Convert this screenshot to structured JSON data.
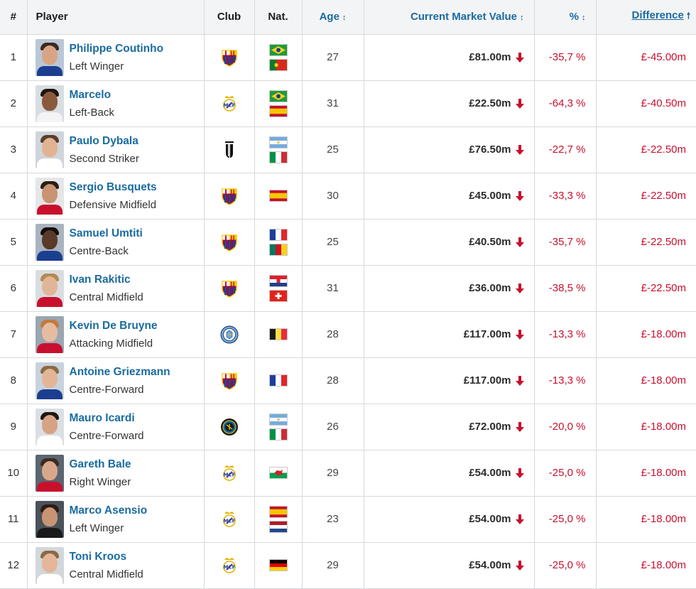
{
  "table": {
    "headers": {
      "num": "#",
      "player": "Player",
      "club": "Club",
      "nat": "Nat.",
      "age": "Age",
      "market_value": "Current Market Value",
      "pct": "%",
      "difference": "Difference"
    },
    "sort": {
      "column": "difference",
      "direction": "ascending"
    },
    "rows": [
      {
        "rank": "1",
        "name": "Philippe Coutinho",
        "position": "Left Winger",
        "club": "fcb-crest",
        "nat": [
          "brazil",
          "portugal"
        ],
        "age": "27",
        "value": "£81.00m",
        "pct": "-35,7 %",
        "diff": "£-45.00m",
        "avatar": {
          "skin": "#d7a584",
          "hair": "#3b2a1f",
          "shirt": "#1b3f8f",
          "bg": "#b9c7d6"
        }
      },
      {
        "rank": "2",
        "name": "Marcelo",
        "position": "Left-Back",
        "club": "real-madrid-crest",
        "nat": [
          "brazil",
          "spain"
        ],
        "age": "31",
        "value": "£22.50m",
        "pct": "-64,3 %",
        "diff": "£-40.50m",
        "avatar": {
          "skin": "#8a5a3c",
          "hair": "#1d1410",
          "shirt": "#f4f4f4",
          "bg": "#d8dde2"
        }
      },
      {
        "rank": "3",
        "name": "Paulo Dybala",
        "position": "Second Striker",
        "club": "juventus-crest",
        "nat": [
          "argentina",
          "italy"
        ],
        "age": "25",
        "value": "£76.50m",
        "pct": "-22,7 %",
        "diff": "£-22.50m",
        "avatar": {
          "skin": "#e0b393",
          "hair": "#5a3d2a",
          "shirt": "#ffffff",
          "bg": "#cfd5da"
        }
      },
      {
        "rank": "4",
        "name": "Sergio Busquets",
        "position": "Defensive Midfield",
        "club": "fcb-crest",
        "nat": [
          "spain"
        ],
        "age": "30",
        "value": "£45.00m",
        "pct": "-33,3 %",
        "diff": "£-22.50m",
        "avatar": {
          "skin": "#c99473",
          "hair": "#2a1d16",
          "shirt": "#c8102e",
          "bg": "#e4e6e8"
        }
      },
      {
        "rank": "5",
        "name": "Samuel Umtiti",
        "position": "Centre-Back",
        "club": "fcb-crest",
        "nat": [
          "france",
          "cameroon"
        ],
        "age": "25",
        "value": "£40.50m",
        "pct": "-35,7 %",
        "diff": "£-22.50m",
        "avatar": {
          "skin": "#5a3a28",
          "hair": "#130d0a",
          "shirt": "#1b3f8f",
          "bg": "#a9b4c0"
        }
      },
      {
        "rank": "6",
        "name": "Ivan Rakitic",
        "position": "Central Midfield",
        "club": "fcb-crest",
        "nat": [
          "croatia",
          "switzerland"
        ],
        "age": "31",
        "value": "£36.00m",
        "pct": "-38,5 %",
        "diff": "£-22.50m",
        "avatar": {
          "skin": "#e1b698",
          "hair": "#b38b52",
          "shirt": "#c8102e",
          "bg": "#d9dde0"
        }
      },
      {
        "rank": "7",
        "name": "Kevin De Bruyne",
        "position": "Attacking Midfield",
        "club": "man-city-crest",
        "nat": [
          "belgium"
        ],
        "age": "28",
        "value": "£117.00m",
        "pct": "-13,3 %",
        "diff": "£-18.00m",
        "avatar": {
          "skin": "#e6bca0",
          "hair": "#c27a3c",
          "shirt": "#c8102e",
          "bg": "#9aa6b0"
        }
      },
      {
        "rank": "8",
        "name": "Antoine Griezmann",
        "position": "Centre-Forward",
        "club": "fcb-crest",
        "nat": [
          "france"
        ],
        "age": "28",
        "value": "£117.00m",
        "pct": "-13,3 %",
        "diff": "£-18.00m",
        "avatar": {
          "skin": "#e2b597",
          "hair": "#8a6a44",
          "shirt": "#1b3f8f",
          "bg": "#c7d2dc"
        }
      },
      {
        "rank": "9",
        "name": "Mauro Icardi",
        "position": "Centre-Forward",
        "club": "inter-crest",
        "nat": [
          "argentina",
          "italy"
        ],
        "age": "26",
        "value": "£72.00m",
        "pct": "-20,0 %",
        "diff": "£-18.00m",
        "avatar": {
          "skin": "#d6a484",
          "hair": "#1e1612",
          "shirt": "#ffffff",
          "bg": "#dadfe3"
        }
      },
      {
        "rank": "10",
        "name": "Gareth Bale",
        "position": "Right Winger",
        "club": "real-madrid-crest",
        "nat": [
          "wales"
        ],
        "age": "29",
        "value": "£54.00m",
        "pct": "-25,0 %",
        "diff": "£-18.00m",
        "avatar": {
          "skin": "#d9a88a",
          "hair": "#3b2a1f",
          "shirt": "#c8102e",
          "bg": "#5b6670"
        }
      },
      {
        "rank": "11",
        "name": "Marco Asensio",
        "position": "Left Winger",
        "club": "real-madrid-crest",
        "nat": [
          "spain",
          "netherlands"
        ],
        "age": "23",
        "value": "£54.00m",
        "pct": "-25,0 %",
        "diff": "£-18.00m",
        "avatar": {
          "skin": "#c99473",
          "hair": "#2a1d16",
          "shirt": "#1a1a1a",
          "bg": "#4a525a"
        }
      },
      {
        "rank": "12",
        "name": "Toni Kroos",
        "position": "Central Midfield",
        "club": "real-madrid-crest",
        "nat": [
          "germany"
        ],
        "age": "29",
        "value": "£54.00m",
        "pct": "-25,0 %",
        "diff": "£-18.00m",
        "avatar": {
          "skin": "#e4b79a",
          "hair": "#8a6a44",
          "shirt": "#ffffff",
          "bg": "#d2d7db"
        }
      }
    ]
  },
  "colors": {
    "link": "#1a6ba0",
    "negative": "#c8102e",
    "header_bg": "#f3f4f6",
    "border": "#d7d9dc"
  }
}
